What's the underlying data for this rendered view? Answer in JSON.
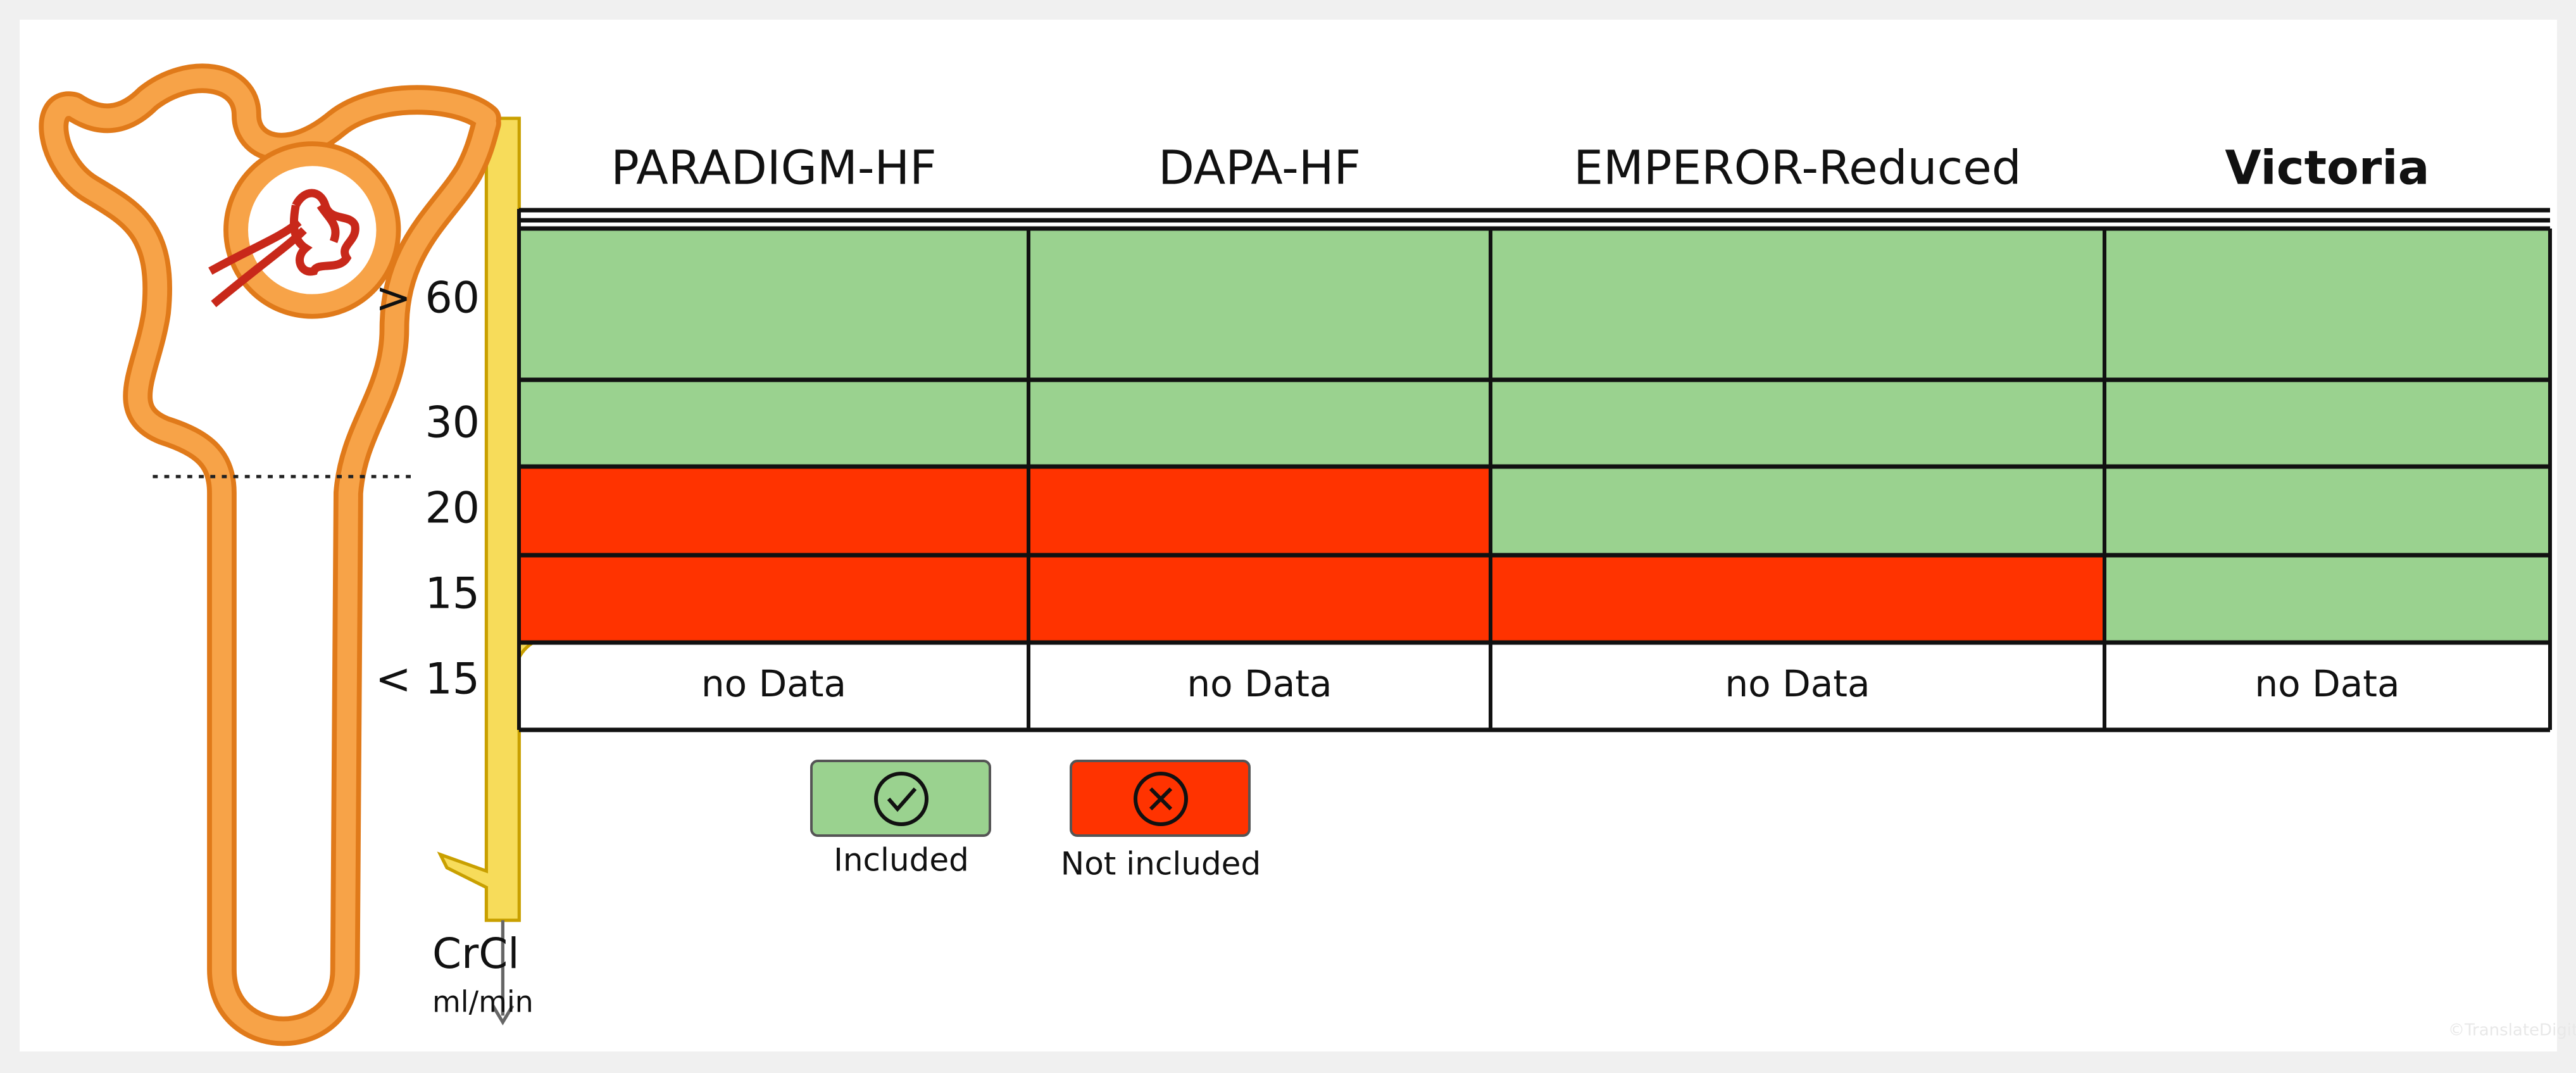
{
  "table": {
    "columns": [
      "PARADIGM-HF",
      "DAPA-HF",
      "EMPEROR-Reduced",
      "Victoria"
    ],
    "header_bold": [
      false,
      false,
      false,
      true
    ],
    "rows": [
      {
        "label": "> 60",
        "colors": [
          "#9ad28f",
          "#9ad28f",
          "#9ad28f",
          "#9ad28f"
        ]
      },
      {
        "label": "30",
        "colors": [
          "#9ad28f",
          "#9ad28f",
          "#9ad28f",
          "#9ad28f"
        ]
      },
      {
        "label": "20",
        "colors": [
          "#ff3300",
          "#ff3300",
          "#9ad28f",
          "#9ad28f"
        ]
      },
      {
        "label": "15",
        "colors": [
          "#ff3300",
          "#ff3300",
          "#ff3300",
          "#9ad28f"
        ]
      },
      {
        "label": "< 15",
        "cells": [
          "no Data",
          "no Data",
          "no Data",
          "no Data"
        ]
      }
    ]
  },
  "legend": [
    {
      "label": "Included",
      "color": "#9ad28f"
    },
    {
      "label": "Not included",
      "color": "#ff3300"
    }
  ],
  "axis": {
    "label": "CrCl",
    "unit": "ml/min"
  },
  "watermark": "©TranslateDigital"
}
